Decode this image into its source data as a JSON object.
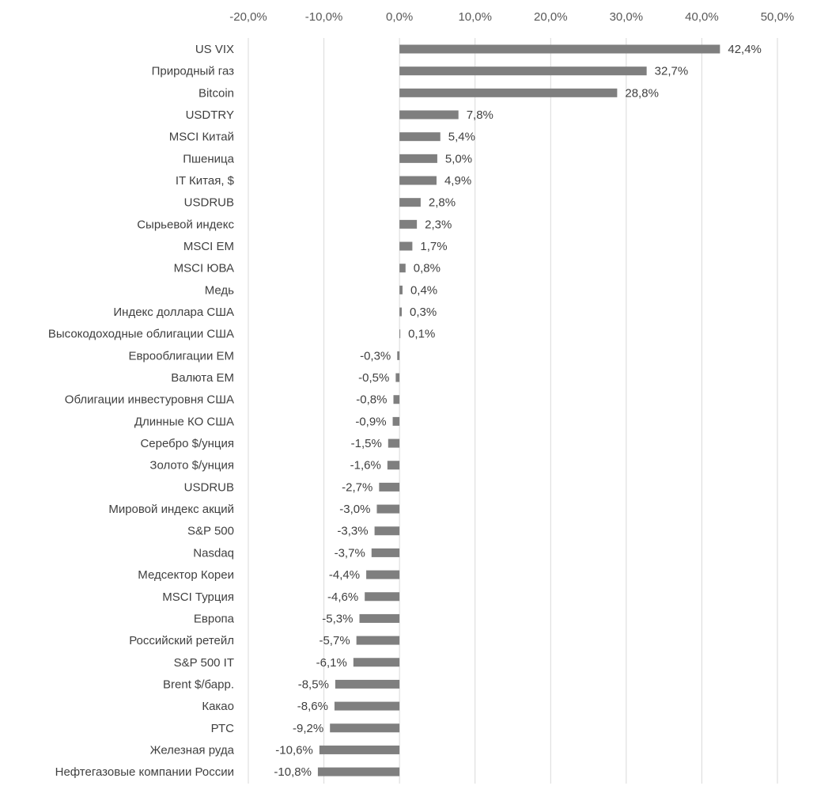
{
  "chart_data": {
    "type": "bar",
    "orientation": "horizontal",
    "title": "",
    "xlabel": "",
    "ylabel": "",
    "xlim": [
      -20,
      50
    ],
    "x_ticks": [
      "-20,0%",
      "-10,0%",
      "0,0%",
      "10,0%",
      "20,0%",
      "30,0%",
      "40,0%",
      "50,0%"
    ],
    "x_axis_position": "top",
    "grid": true,
    "legend": "none",
    "bar_color": "#7f7f7f",
    "grid_color": "#d9d9d9",
    "categories": [
      "US VIX",
      "Природный газ",
      "Bitcoin",
      "USDTRY",
      "MSCI Китай",
      "Пшеница",
      "IT Китая, $",
      "USDRUB",
      "Сырьевой индекс",
      "MSCI EM",
      "MSCI ЮВА",
      "Медь",
      "Индекс доллара США",
      "Высокодоходные облигации США",
      "Еврооблигации ЕМ",
      "Валюта ЕМ",
      "Облигации инвестуровня США",
      "Длинные КО США",
      "Серебро $/унция",
      "Золото $/унция",
      "USDRUB",
      "Мировой индекс акций",
      "S&P 500",
      "Nasdaq",
      "Медсектор Кореи",
      "MSCI Турция",
      "Европа",
      "Российский ретейл",
      "S&P 500 IT",
      "Brent $/барр.",
      "Какао",
      "РТС",
      "Железная руда",
      "Нефтегазовые компании России"
    ],
    "values": [
      42.4,
      32.7,
      28.8,
      7.8,
      5.4,
      5.0,
      4.9,
      2.8,
      2.3,
      1.7,
      0.8,
      0.4,
      0.3,
      0.1,
      -0.3,
      -0.5,
      -0.8,
      -0.9,
      -1.5,
      -1.6,
      -2.7,
      -3.0,
      -3.3,
      -3.7,
      -4.4,
      -4.6,
      -5.3,
      -5.7,
      -6.1,
      -8.5,
      -8.6,
      -9.2,
      -10.6,
      -10.8
    ],
    "data_labels": [
      "42,4%",
      "32,7%",
      "28,8%",
      "7,8%",
      "5,4%",
      "5,0%",
      "4,9%",
      "2,8%",
      "2,3%",
      "1,7%",
      "0,8%",
      "0,4%",
      "0,3%",
      "0,1%",
      "-0,3%",
      "-0,5%",
      "-0,8%",
      "-0,9%",
      "-1,5%",
      "-1,6%",
      "-2,7%",
      "-3,0%",
      "-3,3%",
      "-3,7%",
      "-4,4%",
      "-4,6%",
      "-5,3%",
      "-5,7%",
      "-6,1%",
      "-8,5%",
      "-8,6%",
      "-9,2%",
      "-10,6%",
      "-10,8%"
    ]
  }
}
